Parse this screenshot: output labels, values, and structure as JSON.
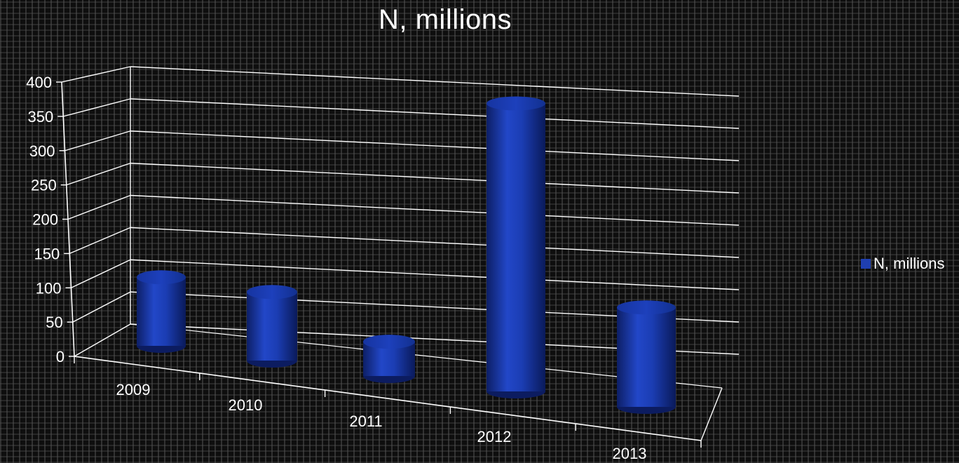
{
  "chart_data": {
    "type": "bar",
    "bar_shape": "cylinder-3d",
    "title": "N, millions",
    "categories": [
      "2009",
      "2010",
      "2011",
      "2012",
      "2013"
    ],
    "series": [
      {
        "name": "N, millions",
        "values": [
          100,
          100,
          50,
          420,
          145
        ],
        "color": "#1f3fb0"
      }
    ],
    "y_ticks": [
      "0",
      "50",
      "100",
      "150",
      "200",
      "250",
      "300",
      "350",
      "400"
    ],
    "ylim": [
      0,
      400
    ],
    "grid": true,
    "legend_position": "right",
    "background": "#0e0e0e",
    "axis_color": "#ffffff"
  }
}
